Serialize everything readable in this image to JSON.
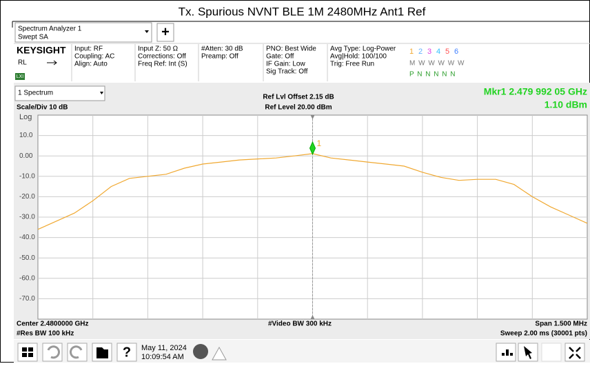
{
  "header": {
    "title": "Tx. Spurious NVNT BLE 1M 2480MHz Ant1 Ref"
  },
  "toolbar": {
    "mode_line1": "Spectrum Analyzer 1",
    "mode_line2": "Swept SA",
    "add": "+"
  },
  "info": {
    "brand": "KEYSIGHT",
    "rl": "RL",
    "lxi": "LXI",
    "col1": [
      "Input: RF",
      "Coupling: AC",
      "Align: Auto"
    ],
    "col2": [
      "Input Z: 50 Ω",
      "Corrections: Off",
      "Freq Ref: Int (S)"
    ],
    "col3": [
      "#Atten: 30 dB",
      "Preamp: Off"
    ],
    "col4": [
      "PNO: Best Wide",
      "Gate: Off",
      "IF Gain: Low",
      "Sig Track: Off"
    ],
    "col5": [
      "Avg Type: Log-Power",
      "Avg|Hold: 100/100",
      "Trig: Free Run"
    ],
    "traces": [
      "1",
      "2",
      "3",
      "4",
      "5",
      "6"
    ],
    "trace_mode": "M W W W W W",
    "trace_det": "P N N N N N"
  },
  "panel": {
    "window": "1 Spectrum",
    "ref_offset": "Ref Lvl Offset 2.15 dB",
    "ref_level": "Ref Level 20.00 dBm",
    "marker_freq": "Mkr1  2.479 992 05 GHz",
    "marker_level": "1.10 dBm",
    "scale": "Scale/Div 10 dB",
    "log": "Log",
    "marker_label": "1"
  },
  "chart_data": {
    "type": "line",
    "ylim": [
      -80,
      20
    ],
    "yticks": [
      {
        "value": 10,
        "label": "10.0"
      },
      {
        "value": 0,
        "label": "0.00"
      },
      {
        "value": -10,
        "label": "-10.0"
      },
      {
        "value": -20,
        "label": "-20.0"
      },
      {
        "value": -30,
        "label": "-30.0"
      },
      {
        "value": -40,
        "label": "-40.0"
      },
      {
        "value": -50,
        "label": "-50.0"
      },
      {
        "value": -60,
        "label": "-60.0"
      },
      {
        "value": -70,
        "label": "-70.0"
      }
    ],
    "grid": true,
    "series": [
      {
        "color": "#f0a830",
        "values": [
          -36,
          -32,
          -28,
          -22,
          -15,
          -11,
          -10,
          -9,
          -6,
          -4,
          -3,
          -2,
          -1.5,
          -1,
          0,
          1.1,
          -1,
          -2,
          -3,
          -4,
          -5,
          -8,
          -10.5,
          -12,
          -11.5,
          -11.5,
          -14,
          -20,
          -25,
          -29,
          -33
        ]
      }
    ],
    "marker_index": 15
  },
  "footer": {
    "center": "Center 2.4800000 GHz",
    "vbw": "#Video BW 300 kHz",
    "span": "Span 1.500 MHz",
    "rbw": "#Res BW 100 kHz",
    "sweep": "Sweep 2.00 ms (30001 pts)"
  },
  "taskbar": {
    "date": "May 11, 2024",
    "time": "10:09:54 AM",
    "help": "?"
  }
}
